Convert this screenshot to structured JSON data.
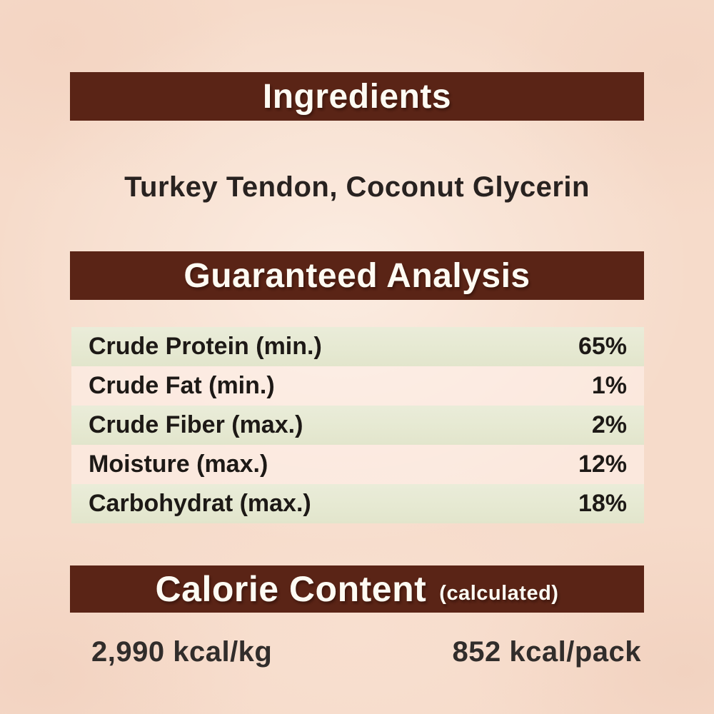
{
  "colors": {
    "header_bar": "#5a2416",
    "header_text": "#fdfbf3",
    "background": "#f6dbca",
    "row_band": "#e6e9d2",
    "body_text": "#1d1916"
  },
  "ingredients": {
    "title": "Ingredients",
    "content": "Turkey Tendon, Coconut Glycerin"
  },
  "analysis": {
    "title": "Guaranteed Analysis",
    "rows": [
      {
        "label": "Crude Protein (min.)",
        "value": "65%"
      },
      {
        "label": "Crude Fat (min.)",
        "value": "1%"
      },
      {
        "label": "Crude Fiber (max.)",
        "value": "2%"
      },
      {
        "label": "Moisture (max.)",
        "value": "12%"
      },
      {
        "label": "Carbohydrat (max.)",
        "value": "18%"
      }
    ]
  },
  "calories": {
    "title": "Calorie Content",
    "subtitle": "(calculated)",
    "per_kg": "2,990 kcal/kg",
    "per_pack": "852 kcal/pack"
  }
}
